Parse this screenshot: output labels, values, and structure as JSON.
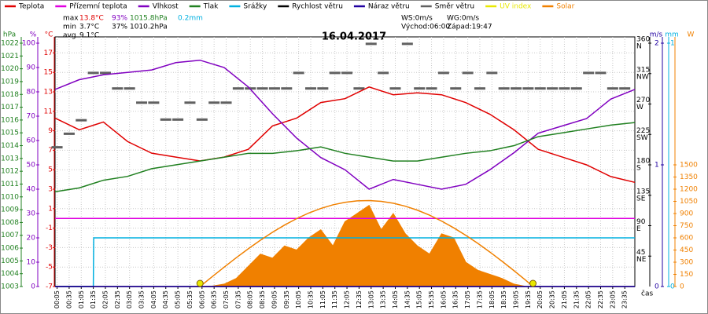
{
  "chart_data": {
    "type": "line",
    "title": "16.04.2017",
    "x_label": "čas",
    "xlim": [
      0,
      1440
    ],
    "xticks": [
      {
        "value": 5,
        "label": "00:05"
      },
      {
        "value": 35,
        "label": "00:35"
      },
      {
        "value": 65,
        "label": "01:05"
      },
      {
        "value": 95,
        "label": "01:35"
      },
      {
        "value": 125,
        "label": "02:05"
      },
      {
        "value": 155,
        "label": "02:35"
      },
      {
        "value": 185,
        "label": "03:05"
      },
      {
        "value": 215,
        "label": "03:35"
      },
      {
        "value": 245,
        "label": "04:05"
      },
      {
        "value": 275,
        "label": "04:35"
      },
      {
        "value": 305,
        "label": "05:05"
      },
      {
        "value": 335,
        "label": "05:35"
      },
      {
        "value": 365,
        "label": "06:05"
      },
      {
        "value": 395,
        "label": "06:35"
      },
      {
        "value": 425,
        "label": "07:05"
      },
      {
        "value": 455,
        "label": "07:35"
      },
      {
        "value": 485,
        "label": "08:05"
      },
      {
        "value": 515,
        "label": "08:35"
      },
      {
        "value": 545,
        "label": "09:05"
      },
      {
        "value": 575,
        "label": "09:35"
      },
      {
        "value": 605,
        "label": "10:05"
      },
      {
        "value": 635,
        "label": "10:35"
      },
      {
        "value": 665,
        "label": "11:05"
      },
      {
        "value": 695,
        "label": "11:35"
      },
      {
        "value": 725,
        "label": "12:05"
      },
      {
        "value": 755,
        "label": "12:35"
      },
      {
        "value": 785,
        "label": "13:05"
      },
      {
        "value": 815,
        "label": "13:35"
      },
      {
        "value": 845,
        "label": "14:05"
      },
      {
        "value": 875,
        "label": "14:35"
      },
      {
        "value": 905,
        "label": "15:05"
      },
      {
        "value": 935,
        "label": "15:35"
      },
      {
        "value": 965,
        "label": "16:05"
      },
      {
        "value": 995,
        "label": "16:35"
      },
      {
        "value": 1025,
        "label": "17:05"
      },
      {
        "value": 1055,
        "label": "17:35"
      },
      {
        "value": 1085,
        "label": "18:05"
      },
      {
        "value": 1115,
        "label": "18:35"
      },
      {
        "value": 1145,
        "label": "19:05"
      },
      {
        "value": 1175,
        "label": "19:35"
      },
      {
        "value": 1205,
        "label": "20:05"
      },
      {
        "value": 1235,
        "label": "20:35"
      },
      {
        "value": 1265,
        "label": "21:05"
      },
      {
        "value": 1295,
        "label": "21:35"
      },
      {
        "value": 1325,
        "label": "22:05"
      },
      {
        "value": 1355,
        "label": "22:35"
      },
      {
        "value": 1385,
        "label": "23:05"
      },
      {
        "value": 1415,
        "label": "23:35"
      }
    ],
    "grid": true,
    "axes": {
      "pressure": {
        "label": "hPa",
        "side": "left",
        "color": "#208020",
        "ylim": [
          1003,
          1022
        ],
        "yticks": [
          1003,
          1004,
          1005,
          1006,
          1007,
          1008,
          1009,
          1010,
          1011,
          1012,
          1013,
          1014,
          1015,
          1016,
          1017,
          1018,
          1019,
          1020,
          1021,
          1022
        ]
      },
      "humidity": {
        "label": "%",
        "side": "left",
        "color": "#8000c0",
        "ylim": [
          0,
          100
        ],
        "yticks": [
          0,
          10,
          20,
          30,
          40,
          50,
          60,
          70,
          80,
          90,
          100
        ]
      },
      "temp": {
        "label": "°C",
        "side": "left",
        "color": "#e00000",
        "ylim": [
          -7,
          18
        ],
        "yticks": [
          -7,
          -5,
          -3,
          -1,
          1,
          3,
          5,
          7,
          9,
          11,
          13,
          15,
          17
        ],
        "grid": true
      },
      "direction": {
        "side": "right",
        "color": "#000000",
        "ylim": [
          0,
          360
        ],
        "yticks": [
          45,
          90,
          135,
          180,
          225,
          270,
          315,
          360
        ],
        "tick_names": [
          "NE",
          "E",
          "SE",
          "S",
          "SW",
          "W",
          "NW",
          "N"
        ]
      },
      "speed": {
        "label": "m/s",
        "side": "right",
        "color": "#2000a0",
        "ylim": [
          0,
          2
        ],
        "yticks": [
          0,
          1,
          2
        ]
      },
      "rain": {
        "label": "mm",
        "side": "right",
        "color": "#00b0e0",
        "ylim": [
          0,
          1
        ],
        "yticks": [
          0,
          1
        ]
      },
      "solar": {
        "label": "W",
        "side": "right",
        "color": "#f08000",
        "ylim": [
          0,
          3000
        ],
        "yticks": [
          0,
          150,
          300,
          450,
          600,
          750,
          900,
          1050,
          1200,
          1350,
          1500
        ]
      }
    },
    "series": [
      {
        "name": "Teplota",
        "color": "#e00000",
        "axis": "temp",
        "style": "line",
        "x": [
          0,
          60,
          120,
          180,
          240,
          300,
          360,
          420,
          480,
          540,
          600,
          660,
          720,
          780,
          840,
          900,
          960,
          1020,
          1080,
          1140,
          1200,
          1260,
          1320,
          1380,
          1440
        ],
        "values": [
          10.3,
          9.1,
          9.9,
          7.9,
          6.7,
          6.3,
          5.9,
          6.3,
          7.1,
          9.5,
          10.3,
          11.9,
          12.3,
          13.5,
          12.7,
          12.9,
          12.7,
          11.9,
          10.7,
          9.1,
          7.1,
          6.3,
          5.5,
          4.3,
          3.7
        ]
      },
      {
        "name": "Přízemní teplota",
        "color": "#e000e0",
        "axis": "temp",
        "style": "line",
        "x": [
          0,
          1440
        ],
        "values": [
          0,
          0
        ]
      },
      {
        "name": "Vlhkost",
        "color": "#8000c0",
        "axis": "humidity",
        "style": "line",
        "x": [
          0,
          60,
          120,
          180,
          240,
          300,
          360,
          420,
          480,
          540,
          600,
          660,
          720,
          780,
          840,
          900,
          960,
          1020,
          1080,
          1140,
          1200,
          1260,
          1320,
          1380,
          1440
        ],
        "values": [
          81,
          85,
          87,
          88,
          89,
          92,
          93,
          90,
          82,
          71,
          61,
          53,
          48,
          40,
          44,
          42,
          40,
          42,
          48,
          55,
          63,
          66,
          69,
          77,
          81
        ]
      },
      {
        "name": "Tlak",
        "color": "#208020",
        "axis": "pressure",
        "style": "line",
        "x": [
          0,
          60,
          120,
          180,
          240,
          300,
          360,
          420,
          480,
          540,
          600,
          660,
          720,
          780,
          840,
          900,
          960,
          1020,
          1080,
          1140,
          1200,
          1260,
          1320,
          1380,
          1440
        ],
        "values": [
          1010.4,
          1010.7,
          1011.3,
          1011.6,
          1012.2,
          1012.5,
          1012.8,
          1013.1,
          1013.4,
          1013.4,
          1013.6,
          1013.9,
          1013.4,
          1013.1,
          1012.8,
          1012.8,
          1013.1,
          1013.4,
          1013.6,
          1014,
          1014.7,
          1015,
          1015.3,
          1015.6,
          1015.8
        ]
      },
      {
        "name": "Srážky",
        "color": "#00b0e0",
        "axis": "rain",
        "style": "line",
        "x": [
          0,
          95,
          96,
          1440
        ],
        "values": [
          0,
          0,
          0.2,
          0.2
        ]
      },
      {
        "name": "Rychlost větru",
        "color": "#000000",
        "axis": "speed",
        "style": "line",
        "x": [
          0,
          1440
        ],
        "values": [
          0,
          0
        ]
      },
      {
        "name": "Náraz větru",
        "color": "#2000a0",
        "axis": "speed",
        "style": "line",
        "x": [
          0,
          1440
        ],
        "values": [
          0,
          0
        ]
      },
      {
        "name": "Směr větru",
        "color": "#606060",
        "axis": "direction",
        "style": "dash",
        "x": [
          5,
          35,
          65,
          95,
          125,
          155,
          185,
          215,
          245,
          275,
          305,
          335,
          365,
          395,
          425,
          455,
          485,
          515,
          545,
          575,
          605,
          635,
          665,
          695,
          725,
          755,
          785,
          815,
          845,
          875,
          905,
          935,
          965,
          995,
          1025,
          1055,
          1085,
          1115,
          1145,
          1175,
          1205,
          1235,
          1265,
          1295,
          1325,
          1355,
          1385,
          1415
        ],
        "values": [
          206,
          226,
          246,
          316,
          316,
          293,
          293,
          272,
          272,
          247,
          247,
          272,
          247,
          272,
          272,
          293,
          293,
          293,
          293,
          293,
          316,
          293,
          293,
          316,
          316,
          293,
          359,
          316,
          293,
          359,
          293,
          293,
          316,
          293,
          316,
          293,
          316,
          293,
          293,
          293,
          293,
          293,
          293,
          293,
          316,
          316,
          293,
          293
        ]
      },
      {
        "name": "UV index",
        "color": "#e8e800",
        "axis": "solar",
        "style": "dot",
        "x": [
          360,
          1187
        ],
        "values": [
          0,
          0
        ]
      },
      {
        "name": "Solar",
        "color": "#f08000",
        "axis": "solar",
        "style": "area",
        "x": [
          360,
          390,
          420,
          450,
          480,
          510,
          540,
          570,
          600,
          630,
          660,
          690,
          720,
          750,
          780,
          810,
          840,
          870,
          900,
          930,
          960,
          990,
          1020,
          1050,
          1080,
          1110,
          1140,
          1170
        ],
        "values": [
          0,
          5,
          30,
          100,
          250,
          400,
          350,
          500,
          450,
          600,
          700,
          500,
          800,
          900,
          1000,
          700,
          900,
          650,
          500,
          400,
          650,
          600,
          300,
          200,
          150,
          100,
          30,
          0
        ]
      },
      {
        "color": "#f08000",
        "axis": "solar",
        "style": "line",
        "x": [
          360,
          390,
          420,
          450,
          480,
          510,
          540,
          570,
          600,
          630,
          660,
          690,
          720,
          750,
          780,
          810,
          840,
          870,
          900,
          930,
          960,
          990,
          1020,
          1050,
          1080,
          1110,
          1140,
          1170,
          1187
        ],
        "values": [
          0,
          120,
          239,
          355,
          466,
          571,
          669,
          758,
          837,
          906,
          962,
          1007,
          1038,
          1056,
          1060,
          1050,
          1027,
          990,
          941,
          880,
          807,
          724,
          632,
          532,
          425,
          312,
          195,
          73,
          0
        ]
      }
    ],
    "annotations": {
      "max": {
        "label": "max",
        "temp": "13.8°C",
        "humidity": "93%",
        "pressure": "1015.8hPa",
        "rain": "0.2mm"
      },
      "min": {
        "label": "min",
        "temp": "3.7°C",
        "humidity": "37%",
        "pressure": "1010.2hPa"
      },
      "avg": {
        "label": "avg",
        "temp": "9.1°C"
      },
      "ws": "WS:0m/s",
      "wg": "WG:0m/s",
      "sunrise": "Východ:06:00",
      "sunset": "Západ:19:47"
    }
  }
}
